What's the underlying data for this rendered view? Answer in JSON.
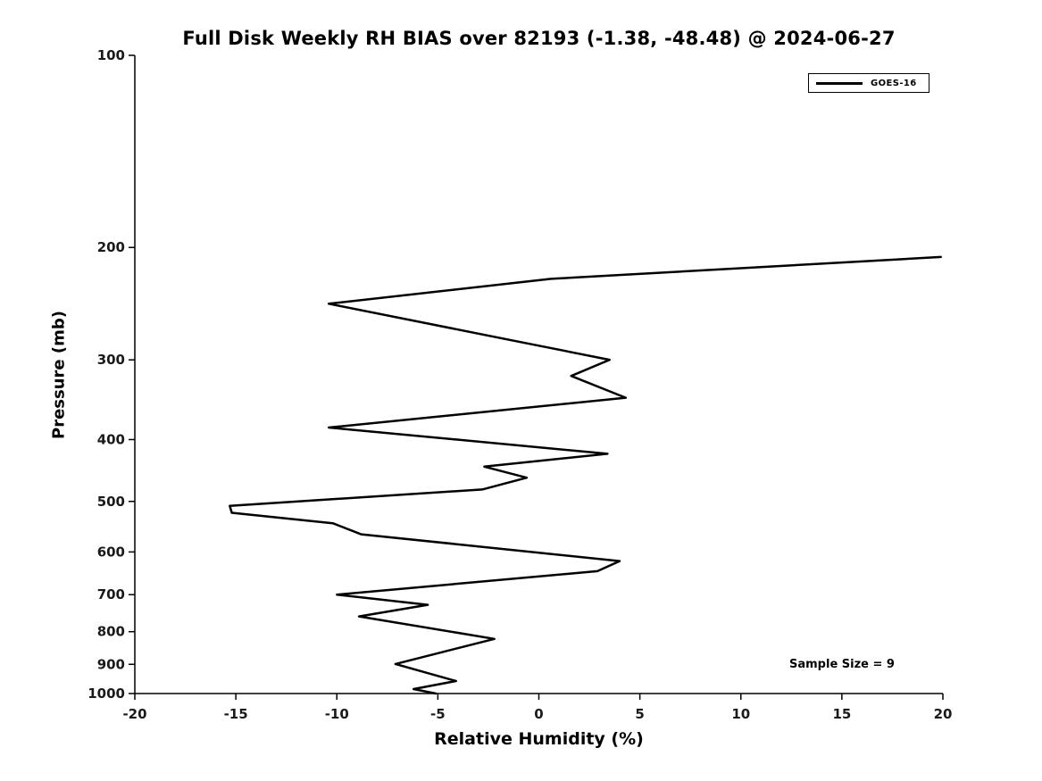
{
  "page": {
    "title": "Full Disk Weekly RH BIAS over 82193 (-1.38, -48.48) @ 2024-06-27"
  },
  "chart_data": {
    "type": "line",
    "title": "Full Disk Weekly RH BIAS over 82193 (-1.38, -48.48) @ 2024-06-27",
    "xlabel": "Relative Humidity (%)",
    "ylabel": "Pressure (mb)",
    "xlim": [
      -20,
      20
    ],
    "ylim": [
      100,
      1000
    ],
    "x_ticks": [
      -20,
      -15,
      -10,
      -5,
      0,
      5,
      10,
      15,
      20
    ],
    "y_ticks": [
      100,
      200,
      300,
      400,
      500,
      600,
      700,
      800,
      900,
      1000
    ],
    "y_scale": "log",
    "y_inverted": true,
    "grid": false,
    "legend": {
      "position": "top-right",
      "entries": [
        "GOES-16"
      ]
    },
    "annotations": [
      {
        "text": "Sample Size = 9",
        "rh": 14.9,
        "pressure": 900
      }
    ],
    "series": [
      {
        "name": "GOES-16",
        "color": "#000000",
        "line_width": 2.5,
        "points": [
          {
            "rh": 19.9,
            "pressure": 207
          },
          {
            "rh": 0.6,
            "pressure": 224
          },
          {
            "rh": -10.4,
            "pressure": 245
          },
          {
            "rh": -1.0,
            "pressure": 281
          },
          {
            "rh": 3.5,
            "pressure": 300
          },
          {
            "rh": 1.6,
            "pressure": 318
          },
          {
            "rh": 4.3,
            "pressure": 344
          },
          {
            "rh": -10.4,
            "pressure": 383
          },
          {
            "rh": 3.4,
            "pressure": 421
          },
          {
            "rh": -2.7,
            "pressure": 441
          },
          {
            "rh": -0.6,
            "pressure": 459
          },
          {
            "rh": -2.8,
            "pressure": 479
          },
          {
            "rh": -15.3,
            "pressure": 508
          },
          {
            "rh": -15.2,
            "pressure": 521
          },
          {
            "rh": -10.2,
            "pressure": 541
          },
          {
            "rh": -8.8,
            "pressure": 563
          },
          {
            "rh": 4.0,
            "pressure": 620
          },
          {
            "rh": 2.9,
            "pressure": 643
          },
          {
            "rh": -10.0,
            "pressure": 700
          },
          {
            "rh": -5.5,
            "pressure": 726
          },
          {
            "rh": -8.9,
            "pressure": 757
          },
          {
            "rh": -2.2,
            "pressure": 821
          },
          {
            "rh": -7.1,
            "pressure": 899
          },
          {
            "rh": -4.1,
            "pressure": 956
          },
          {
            "rh": -6.2,
            "pressure": 984
          },
          {
            "rh": -5.1,
            "pressure": 1000
          }
        ]
      }
    ]
  }
}
